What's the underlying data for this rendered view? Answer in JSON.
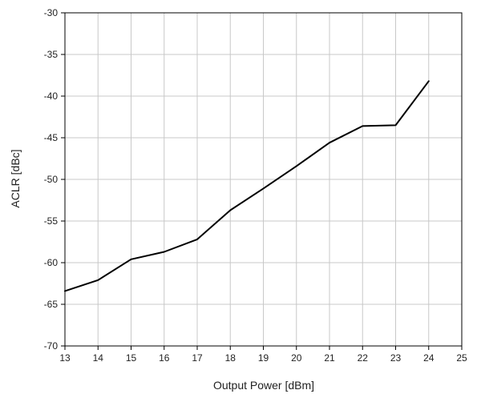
{
  "chart_data": {
    "type": "line",
    "title": "",
    "xlabel": "Output Power [dBm]",
    "ylabel": "ACLR [dBc]",
    "xlim": [
      13,
      25
    ],
    "ylim": [
      -70,
      -30
    ],
    "xticks": [
      13,
      14,
      15,
      16,
      17,
      18,
      19,
      20,
      21,
      22,
      23,
      24,
      25
    ],
    "yticks": [
      -30,
      -35,
      -40,
      -45,
      -50,
      -55,
      -60,
      -65,
      -70
    ],
    "grid": true,
    "legend": "none",
    "series": [
      {
        "color": "#000000",
        "x": [
          13,
          14,
          15,
          16,
          17,
          18,
          19,
          20,
          21,
          22,
          23,
          24
        ],
        "y": [
          -63.4,
          -62.1,
          -59.6,
          -58.7,
          -57.2,
          -53.7,
          -51.1,
          -48.4,
          -45.6,
          -43.6,
          -43.5,
          -38.2
        ]
      }
    ]
  }
}
